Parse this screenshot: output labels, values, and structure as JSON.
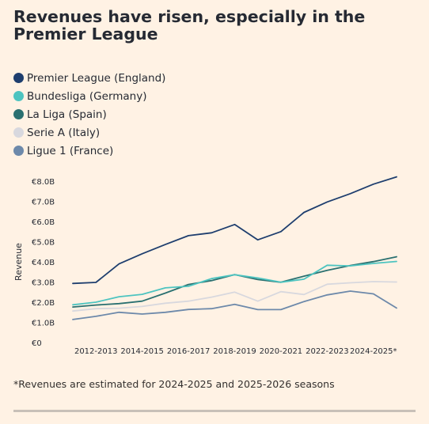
{
  "title": "Revenues have risen, especially in the Premier League",
  "footnote": "*Revenues are estimated for 2024-2025 and 2025-2026 seasons",
  "chart_data": {
    "type": "line",
    "title": "Revenues have risen, especially in the Premier League",
    "xlabel": "",
    "ylabel": "Revenue",
    "ylim": [
      0,
      8.0
    ],
    "grid": false,
    "legend_position": "top-left",
    "y_ticks": [
      "€0",
      "€1.0B",
      "€2.0B",
      "€3.0B",
      "€4.0B",
      "€5.0B",
      "€6.0B",
      "€7.0B",
      "€8.0B"
    ],
    "y_tick_values": [
      0,
      1,
      2,
      3,
      4,
      5,
      6,
      7,
      8
    ],
    "x": [
      "2011-2012",
      "2012-2013",
      "2013-2014",
      "2014-2015",
      "2015-2016",
      "2016-2017",
      "2017-2018",
      "2018-2019",
      "2019-2020",
      "2020-2021",
      "2021-2022",
      "2022-2023",
      "2023-2024",
      "2024-2025*",
      "2025-2026*"
    ],
    "x_tick_labels": [
      "2012-2013",
      "2014-2015",
      "2016-2017",
      "2018-2019",
      "2020-2021",
      "2022-2023",
      "2024-2025*"
    ],
    "series": [
      {
        "name": "Premier League (England)",
        "color": "#1e3e6e",
        "values": [
          2.93,
          2.98,
          3.9,
          4.4,
          4.86,
          5.3,
          5.44,
          5.85,
          5.09,
          5.5,
          6.45,
          6.97,
          7.38,
          7.85,
          8.21
        ]
      },
      {
        "name": "Bundesliga (Germany)",
        "color": "#4dc4c0",
        "values": [
          1.87,
          2.0,
          2.27,
          2.39,
          2.71,
          2.79,
          3.17,
          3.36,
          3.2,
          2.99,
          3.14,
          3.83,
          3.8,
          3.92,
          4.02
        ]
      },
      {
        "name": "La Liga (Spain)",
        "color": "#2a7070",
        "values": [
          1.76,
          1.86,
          1.93,
          2.05,
          2.45,
          2.88,
          3.07,
          3.37,
          3.12,
          2.99,
          3.29,
          3.58,
          3.82,
          4.01,
          4.25
        ]
      },
      {
        "name": "Serie A (Italy)",
        "color": "#d8d8de",
        "values": [
          1.56,
          1.68,
          1.7,
          1.79,
          1.95,
          2.05,
          2.25,
          2.5,
          2.05,
          2.52,
          2.38,
          2.89,
          2.96,
          3.02,
          3.0
        ]
      },
      {
        "name": "Ligue 1 (France)",
        "color": "#6d89aa",
        "values": [
          1.14,
          1.3,
          1.5,
          1.41,
          1.5,
          1.64,
          1.68,
          1.89,
          1.63,
          1.63,
          2.03,
          2.36,
          2.55,
          2.41,
          1.71
        ]
      }
    ]
  }
}
